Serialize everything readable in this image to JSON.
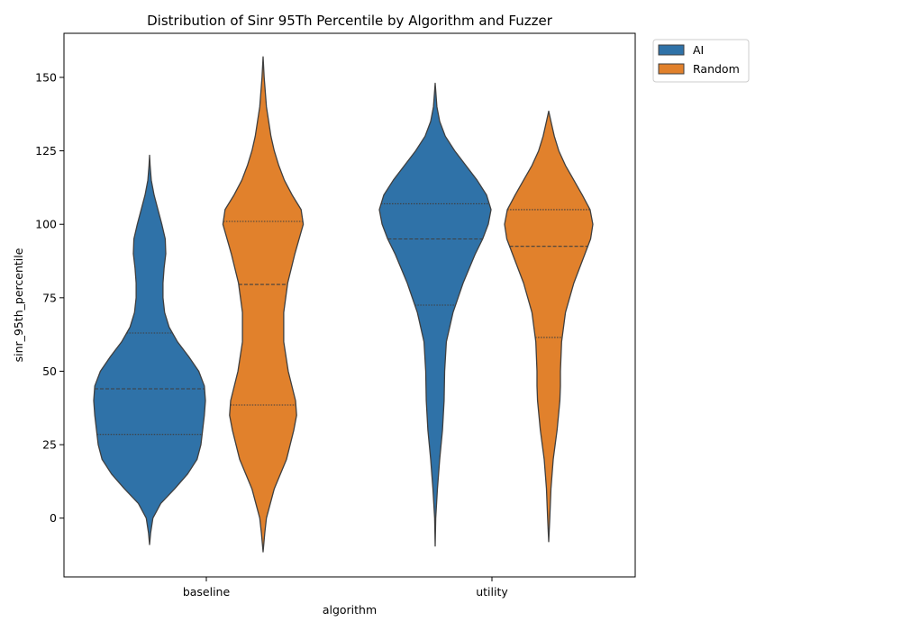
{
  "chart_data": {
    "type": "violin",
    "title": "Distribution of Sinr 95Th Percentile by Algorithm and Fuzzer",
    "xlabel": "algorithm",
    "ylabel": "sinr_95th_percentile",
    "categories": [
      "baseline",
      "utility"
    ],
    "ylim": [
      -20,
      165
    ],
    "yticks": [
      0,
      25,
      50,
      75,
      100,
      125,
      150
    ],
    "grid": false,
    "legend": {
      "placement": "outside-top-right",
      "entries": [
        "AI",
        "Random"
      ]
    },
    "series": [
      {
        "name": "AI",
        "color": "#2f72a8",
        "violins": [
          {
            "category": "baseline",
            "min": -9,
            "max": 123.5,
            "quartiles": [
              28.5,
              44,
              63
            ],
            "profile": [
              [
                -9,
                0
              ],
              [
                -5,
                0.02
              ],
              [
                0,
                0.06
              ],
              [
                5,
                0.2
              ],
              [
                10,
                0.45
              ],
              [
                15,
                0.68
              ],
              [
                20,
                0.85
              ],
              [
                25,
                0.92
              ],
              [
                30,
                0.95
              ],
              [
                35,
                0.98
              ],
              [
                40,
                1.0
              ],
              [
                45,
                0.98
              ],
              [
                50,
                0.88
              ],
              [
                55,
                0.7
              ],
              [
                60,
                0.5
              ],
              [
                65,
                0.35
              ],
              [
                70,
                0.27
              ],
              [
                75,
                0.24
              ],
              [
                80,
                0.24
              ],
              [
                85,
                0.26
              ],
              [
                90,
                0.29
              ],
              [
                95,
                0.28
              ],
              [
                100,
                0.22
              ],
              [
                105,
                0.15
              ],
              [
                110,
                0.08
              ],
              [
                115,
                0.03
              ],
              [
                120,
                0.01
              ],
              [
                123.5,
                0
              ]
            ]
          },
          {
            "category": "utility",
            "min": -9.5,
            "max": 148,
            "quartiles": [
              72.5,
              95,
              107
            ],
            "profile": [
              [
                -9.5,
                0
              ],
              [
                0,
                0.01
              ],
              [
                10,
                0.04
              ],
              [
                20,
                0.08
              ],
              [
                30,
                0.13
              ],
              [
                40,
                0.16
              ],
              [
                50,
                0.17
              ],
              [
                60,
                0.2
              ],
              [
                70,
                0.32
              ],
              [
                80,
                0.5
              ],
              [
                90,
                0.72
              ],
              [
                95,
                0.85
              ],
              [
                100,
                0.95
              ],
              [
                105,
                1.0
              ],
              [
                110,
                0.92
              ],
              [
                115,
                0.75
              ],
              [
                120,
                0.55
              ],
              [
                125,
                0.35
              ],
              [
                130,
                0.18
              ],
              [
                135,
                0.08
              ],
              [
                140,
                0.03
              ],
              [
                148,
                0
              ]
            ]
          }
        ]
      },
      {
        "name": "Random",
        "color": "#e1812c",
        "violins": [
          {
            "category": "baseline",
            "min": -11.5,
            "max": 157,
            "quartiles": [
              38.5,
              79.5,
              101
            ],
            "profile": [
              [
                -11.5,
                0
              ],
              [
                -5,
                0.03
              ],
              [
                0,
                0.06
              ],
              [
                10,
                0.2
              ],
              [
                20,
                0.42
              ],
              [
                30,
                0.55
              ],
              [
                35,
                0.6
              ],
              [
                40,
                0.58
              ],
              [
                50,
                0.45
              ],
              [
                60,
                0.37
              ],
              [
                70,
                0.37
              ],
              [
                80,
                0.44
              ],
              [
                90,
                0.57
              ],
              [
                100,
                0.72
              ],
              [
                105,
                0.68
              ],
              [
                110,
                0.52
              ],
              [
                115,
                0.38
              ],
              [
                120,
                0.28
              ],
              [
                125,
                0.2
              ],
              [
                130,
                0.14
              ],
              [
                140,
                0.06
              ],
              [
                150,
                0.02
              ],
              [
                157,
                0
              ]
            ]
          },
          {
            "category": "utility",
            "min": -8,
            "max": 138.5,
            "quartiles": [
              61.5,
              92.5,
              105
            ],
            "profile": [
              [
                -8,
                0
              ],
              [
                0,
                0.02
              ],
              [
                10,
                0.04
              ],
              [
                20,
                0.08
              ],
              [
                30,
                0.15
              ],
              [
                40,
                0.2
              ],
              [
                45,
                0.21
              ],
              [
                50,
                0.21
              ],
              [
                60,
                0.23
              ],
              [
                70,
                0.3
              ],
              [
                80,
                0.45
              ],
              [
                90,
                0.65
              ],
              [
                95,
                0.75
              ],
              [
                100,
                0.79
              ],
              [
                105,
                0.74
              ],
              [
                110,
                0.6
              ],
              [
                115,
                0.45
              ],
              [
                120,
                0.3
              ],
              [
                125,
                0.18
              ],
              [
                130,
                0.1
              ],
              [
                135,
                0.04
              ],
              [
                138.5,
                0
              ]
            ]
          }
        ]
      }
    ]
  }
}
